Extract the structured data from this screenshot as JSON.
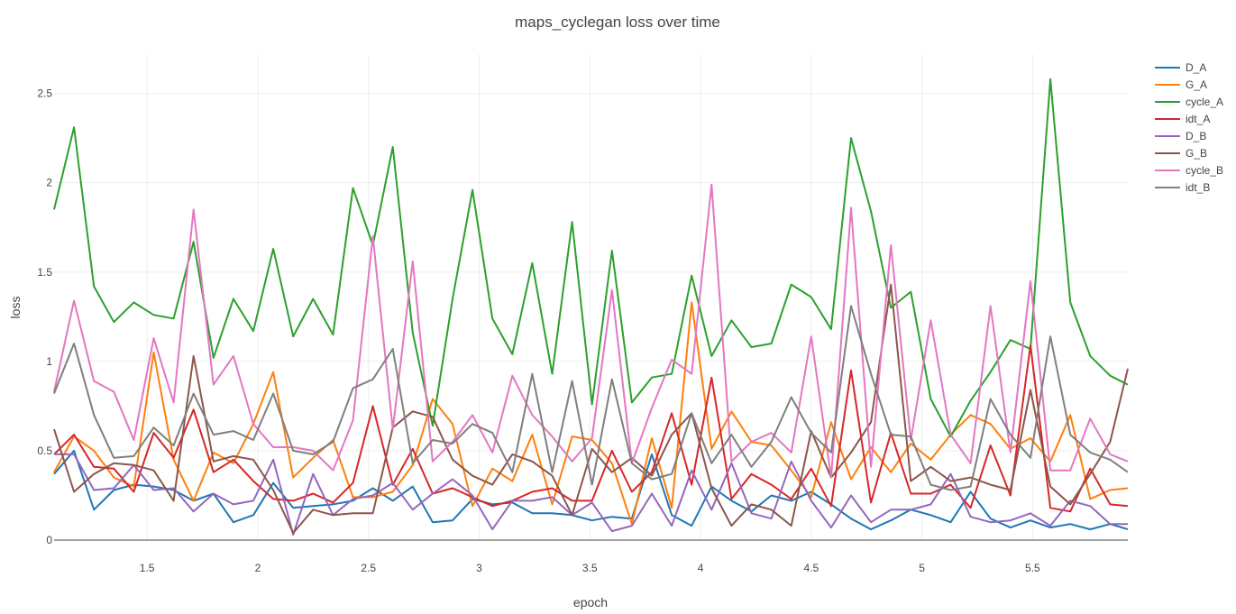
{
  "chart_data": {
    "type": "line",
    "title": "maps_cyclegan loss over time",
    "xlabel": "epoch",
    "ylabel": "loss",
    "xlim": [
      1.08,
      5.93
    ],
    "ylim": [
      0,
      2.72
    ],
    "x_ticks": [
      1.5,
      2,
      2.5,
      3,
      3.5,
      4,
      4.5,
      5,
      5.5
    ],
    "x_tick_labels": [
      "1.5",
      "2",
      "2.5",
      "3",
      "3.5",
      "4",
      "4.5",
      "5",
      "5.5"
    ],
    "y_ticks": [
      0,
      0.5,
      1,
      1.5,
      2,
      2.5
    ],
    "y_tick_labels": [
      "0",
      "0.5",
      "1",
      "1.5",
      "2",
      "2.5"
    ],
    "grid": true,
    "legend_position": "top-right",
    "x": [
      1.08,
      1.17,
      1.26,
      1.35,
      1.44,
      1.53,
      1.62,
      1.71,
      1.8,
      1.89,
      1.98,
      2.07,
      2.16,
      2.25,
      2.34,
      2.43,
      2.52,
      2.61,
      2.7,
      2.79,
      2.88,
      2.97,
      3.06,
      3.15,
      3.24,
      3.33,
      3.42,
      3.51,
      3.6,
      3.69,
      3.78,
      3.87,
      3.96,
      4.05,
      4.14,
      4.23,
      4.32,
      4.41,
      4.5,
      4.59,
      4.68,
      4.77,
      4.86,
      4.95,
      5.04,
      5.13,
      5.22,
      5.31,
      5.4,
      5.49,
      5.58,
      5.67,
      5.76,
      5.85,
      5.93
    ],
    "series": [
      {
        "name": "D_A",
        "color": "#1f77b4",
        "values": [
          0.37,
          0.5,
          0.17,
          0.28,
          0.31,
          0.3,
          0.28,
          0.22,
          0.26,
          0.1,
          0.14,
          0.32,
          0.18,
          0.19,
          0.2,
          0.22,
          0.29,
          0.22,
          0.3,
          0.1,
          0.11,
          0.23,
          0.2,
          0.21,
          0.15,
          0.15,
          0.14,
          0.11,
          0.13,
          0.12,
          0.48,
          0.14,
          0.08,
          0.3,
          0.22,
          0.16,
          0.25,
          0.22,
          0.27,
          0.2,
          0.12,
          0.06,
          0.11,
          0.17,
          0.14,
          0.1,
          0.27,
          0.12,
          0.07,
          0.11,
          0.07,
          0.09,
          0.06,
          0.09,
          0.06
        ]
      },
      {
        "name": "G_A",
        "color": "#ff7f0e",
        "values": [
          0.38,
          0.58,
          0.5,
          0.35,
          0.3,
          1.05,
          0.45,
          0.22,
          0.49,
          0.43,
          0.65,
          0.94,
          0.35,
          0.46,
          0.56,
          0.24,
          0.24,
          0.27,
          0.42,
          0.79,
          0.65,
          0.19,
          0.4,
          0.33,
          0.59,
          0.2,
          0.58,
          0.56,
          0.43,
          0.09,
          0.57,
          0.18,
          1.33,
          0.51,
          0.72,
          0.55,
          0.53,
          0.39,
          0.24,
          0.66,
          0.34,
          0.52,
          0.38,
          0.54,
          0.45,
          0.59,
          0.7,
          0.65,
          0.51,
          0.57,
          0.44,
          0.7,
          0.23,
          0.28,
          0.29
        ]
      },
      {
        "name": "cycle_A",
        "color": "#2ca02c",
        "values": [
          1.85,
          2.31,
          1.42,
          1.22,
          1.33,
          1.26,
          1.24,
          1.67,
          1.02,
          1.35,
          1.17,
          1.63,
          1.14,
          1.35,
          1.15,
          1.97,
          1.65,
          2.2,
          1.16,
          0.64,
          1.35,
          1.96,
          1.24,
          1.04,
          1.55,
          0.93,
          1.78,
          0.76,
          1.62,
          0.77,
          0.91,
          0.93,
          1.48,
          1.03,
          1.23,
          1.08,
          1.1,
          1.43,
          1.36,
          1.18,
          2.25,
          1.84,
          1.3,
          1.39,
          0.79,
          0.58,
          0.78,
          0.94,
          1.12,
          1.07,
          2.58,
          1.33,
          1.03,
          0.92,
          0.87
        ]
      },
      {
        "name": "idt_A",
        "color": "#d62728",
        "values": [
          0.48,
          0.59,
          0.41,
          0.4,
          0.27,
          0.6,
          0.46,
          0.73,
          0.38,
          0.45,
          0.33,
          0.23,
          0.22,
          0.26,
          0.21,
          0.32,
          0.75,
          0.31,
          0.51,
          0.26,
          0.29,
          0.24,
          0.19,
          0.22,
          0.27,
          0.29,
          0.22,
          0.22,
          0.5,
          0.27,
          0.38,
          0.71,
          0.31,
          0.91,
          0.23,
          0.37,
          0.31,
          0.23,
          0.4,
          0.19,
          0.95,
          0.21,
          0.6,
          0.26,
          0.26,
          0.31,
          0.18,
          0.53,
          0.25,
          1.09,
          0.18,
          0.16,
          0.4,
          0.2,
          0.19
        ]
      },
      {
        "name": "D_B",
        "color": "#9467bd",
        "values": [
          0.48,
          0.48,
          0.28,
          0.29,
          0.42,
          0.28,
          0.29,
          0.16,
          0.26,
          0.2,
          0.22,
          0.45,
          0.03,
          0.37,
          0.14,
          0.23,
          0.25,
          0.32,
          0.17,
          0.26,
          0.34,
          0.25,
          0.06,
          0.22,
          0.22,
          0.24,
          0.14,
          0.21,
          0.05,
          0.08,
          0.26,
          0.08,
          0.39,
          0.17,
          0.43,
          0.15,
          0.12,
          0.44,
          0.22,
          0.07,
          0.25,
          0.1,
          0.17,
          0.17,
          0.2,
          0.37,
          0.13,
          0.1,
          0.11,
          0.15,
          0.08,
          0.22,
          0.19,
          0.09,
          0.09
        ]
      },
      {
        "name": "G_B",
        "color": "#8c564b",
        "values": [
          0.62,
          0.27,
          0.37,
          0.43,
          0.42,
          0.39,
          0.22,
          1.03,
          0.44,
          0.47,
          0.45,
          0.28,
          0.04,
          0.17,
          0.14,
          0.15,
          0.15,
          0.63,
          0.72,
          0.69,
          0.45,
          0.36,
          0.31,
          0.48,
          0.44,
          0.36,
          0.14,
          0.51,
          0.38,
          0.46,
          0.36,
          0.59,
          0.71,
          0.29,
          0.08,
          0.2,
          0.17,
          0.08,
          0.61,
          0.35,
          0.49,
          0.66,
          1.43,
          0.33,
          0.41,
          0.33,
          0.35,
          0.31,
          0.28,
          0.84,
          0.3,
          0.2,
          0.37,
          0.55,
          0.96
        ]
      },
      {
        "name": "cycle_B",
        "color": "#e377c2",
        "values": [
          0.83,
          1.34,
          0.89,
          0.83,
          0.56,
          1.13,
          0.77,
          1.85,
          0.87,
          1.03,
          0.65,
          0.52,
          0.52,
          0.5,
          0.39,
          0.67,
          1.7,
          0.62,
          1.56,
          0.44,
          0.55,
          0.7,
          0.49,
          0.92,
          0.7,
          0.58,
          0.44,
          0.57,
          1.4,
          0.43,
          0.74,
          1.01,
          0.93,
          1.99,
          0.44,
          0.55,
          0.6,
          0.49,
          1.14,
          0.35,
          1.86,
          0.41,
          1.65,
          0.56,
          1.23,
          0.59,
          0.43,
          1.31,
          0.49,
          1.45,
          0.39,
          0.39,
          0.68,
          0.48,
          0.44
        ]
      },
      {
        "name": "idt_B",
        "color": "#7f7f7f",
        "values": [
          0.82,
          1.1,
          0.7,
          0.46,
          0.47,
          0.63,
          0.53,
          0.82,
          0.59,
          0.61,
          0.56,
          0.82,
          0.5,
          0.48,
          0.55,
          0.85,
          0.9,
          1.07,
          0.43,
          0.56,
          0.54,
          0.65,
          0.6,
          0.38,
          0.93,
          0.38,
          0.89,
          0.31,
          0.9,
          0.43,
          0.34,
          0.37,
          0.71,
          0.43,
          0.59,
          0.41,
          0.55,
          0.8,
          0.6,
          0.49,
          1.31,
          0.93,
          0.59,
          0.58,
          0.31,
          0.28,
          0.3,
          0.79,
          0.59,
          0.46,
          1.14,
          0.59,
          0.49,
          0.45,
          0.38
        ]
      }
    ]
  }
}
